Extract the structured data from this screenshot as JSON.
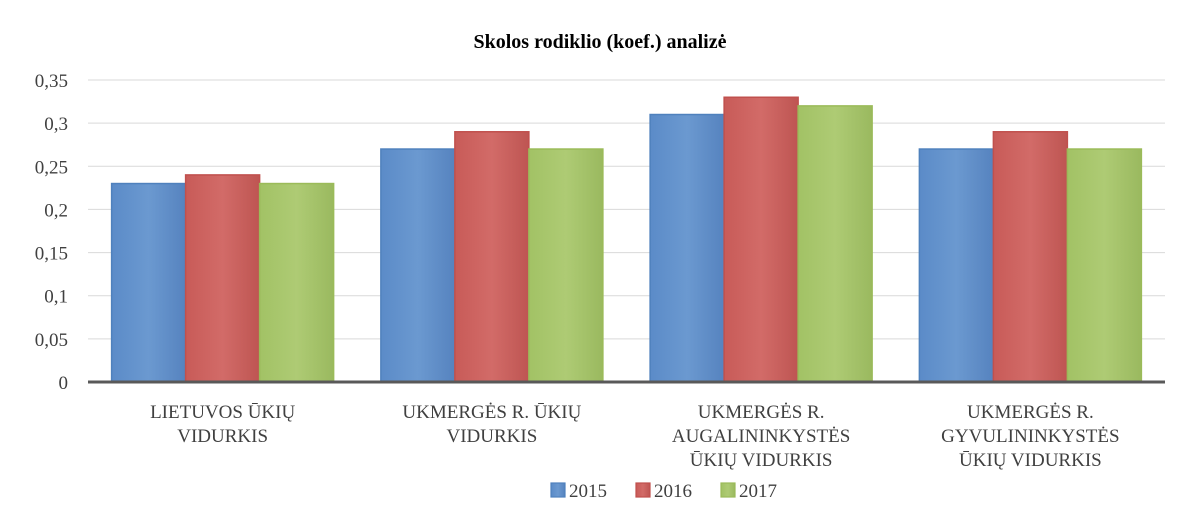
{
  "chart_data": {
    "type": "bar",
    "title": "Skolos rodiklio (koef.) analizė",
    "xlabel": "",
    "ylabel": "",
    "ylim": [
      0,
      0.35
    ],
    "yticks": [
      "0",
      "0,05",
      "0,1",
      "0,15",
      "0,2",
      "0,25",
      "0,3",
      "0,35"
    ],
    "grid": true,
    "legend_position": "bottom",
    "categories": [
      [
        "LIETUVOS ŪKIŲ",
        "VIDURKIS"
      ],
      [
        "UKMERGĖS R. ŪKIŲ",
        "VIDURKIS"
      ],
      [
        "UKMERGĖS R.",
        "AUGALININKYSTĖS",
        "ŪKIŲ VIDURKIS"
      ],
      [
        "UKMERGĖS R.",
        "GYVULININKYSTĖS",
        "ŪKIŲ VIDURKIS"
      ]
    ],
    "series": [
      {
        "name": "2015",
        "color": "#4F81BD",
        "values": [
          0.23,
          0.27,
          0.31,
          0.27
        ]
      },
      {
        "name": "2016",
        "color": "#C0504D",
        "values": [
          0.24,
          0.29,
          0.33,
          0.29
        ]
      },
      {
        "name": "2017",
        "color": "#9BBB59",
        "values": [
          0.23,
          0.27,
          0.32,
          0.27
        ]
      }
    ]
  }
}
